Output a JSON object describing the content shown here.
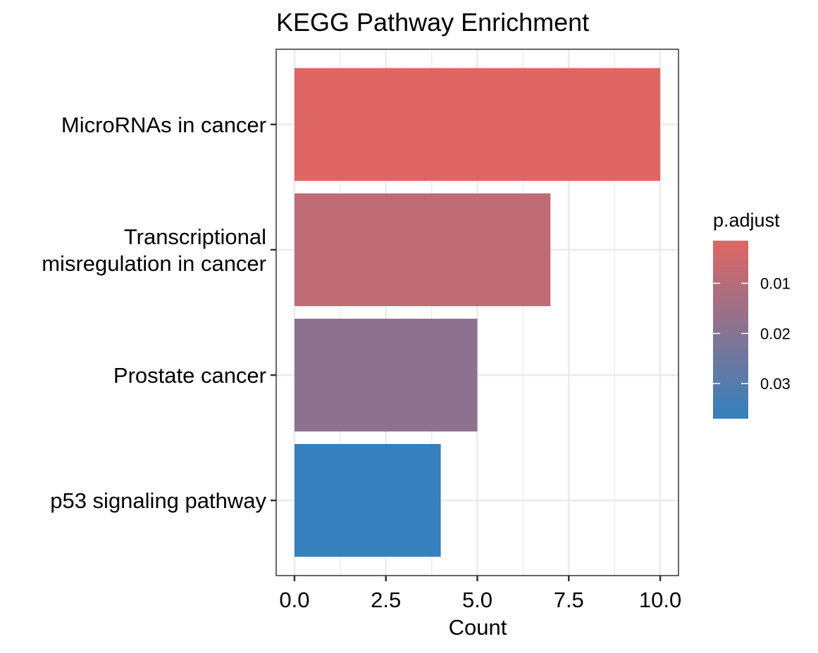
{
  "chart_data": {
    "type": "bar",
    "orientation": "horizontal",
    "title": "KEGG Pathway Enrichment",
    "xlabel": "Count",
    "ylabel": "",
    "categories": [
      [
        "MicroRNAs in cancer"
      ],
      [
        "Transcriptional",
        "misregulation in cancer"
      ],
      [
        "Prostate cancer"
      ],
      [
        "p53 signaling pathway"
      ]
    ],
    "values": [
      10,
      7,
      5,
      4
    ],
    "p_adjust": [
      0.0015,
      0.0085,
      0.0185,
      0.0365
    ],
    "xlim": [
      -0.5,
      10.5
    ],
    "xticks": [
      0,
      2.5,
      5,
      7.5,
      10
    ],
    "xtick_labels": [
      "0.0",
      "2.5",
      "5.0",
      "7.5",
      "10.0"
    ],
    "grid": true,
    "legend": {
      "title": "p.adjust",
      "placement": "right",
      "range": [
        0.0015,
        0.037
      ],
      "ticks": [
        0.01,
        0.02,
        0.03
      ],
      "tick_labels": [
        "0.01",
        "0.02",
        "0.03"
      ],
      "low_color": "#E06664",
      "high_color": "#3380BE"
    }
  }
}
